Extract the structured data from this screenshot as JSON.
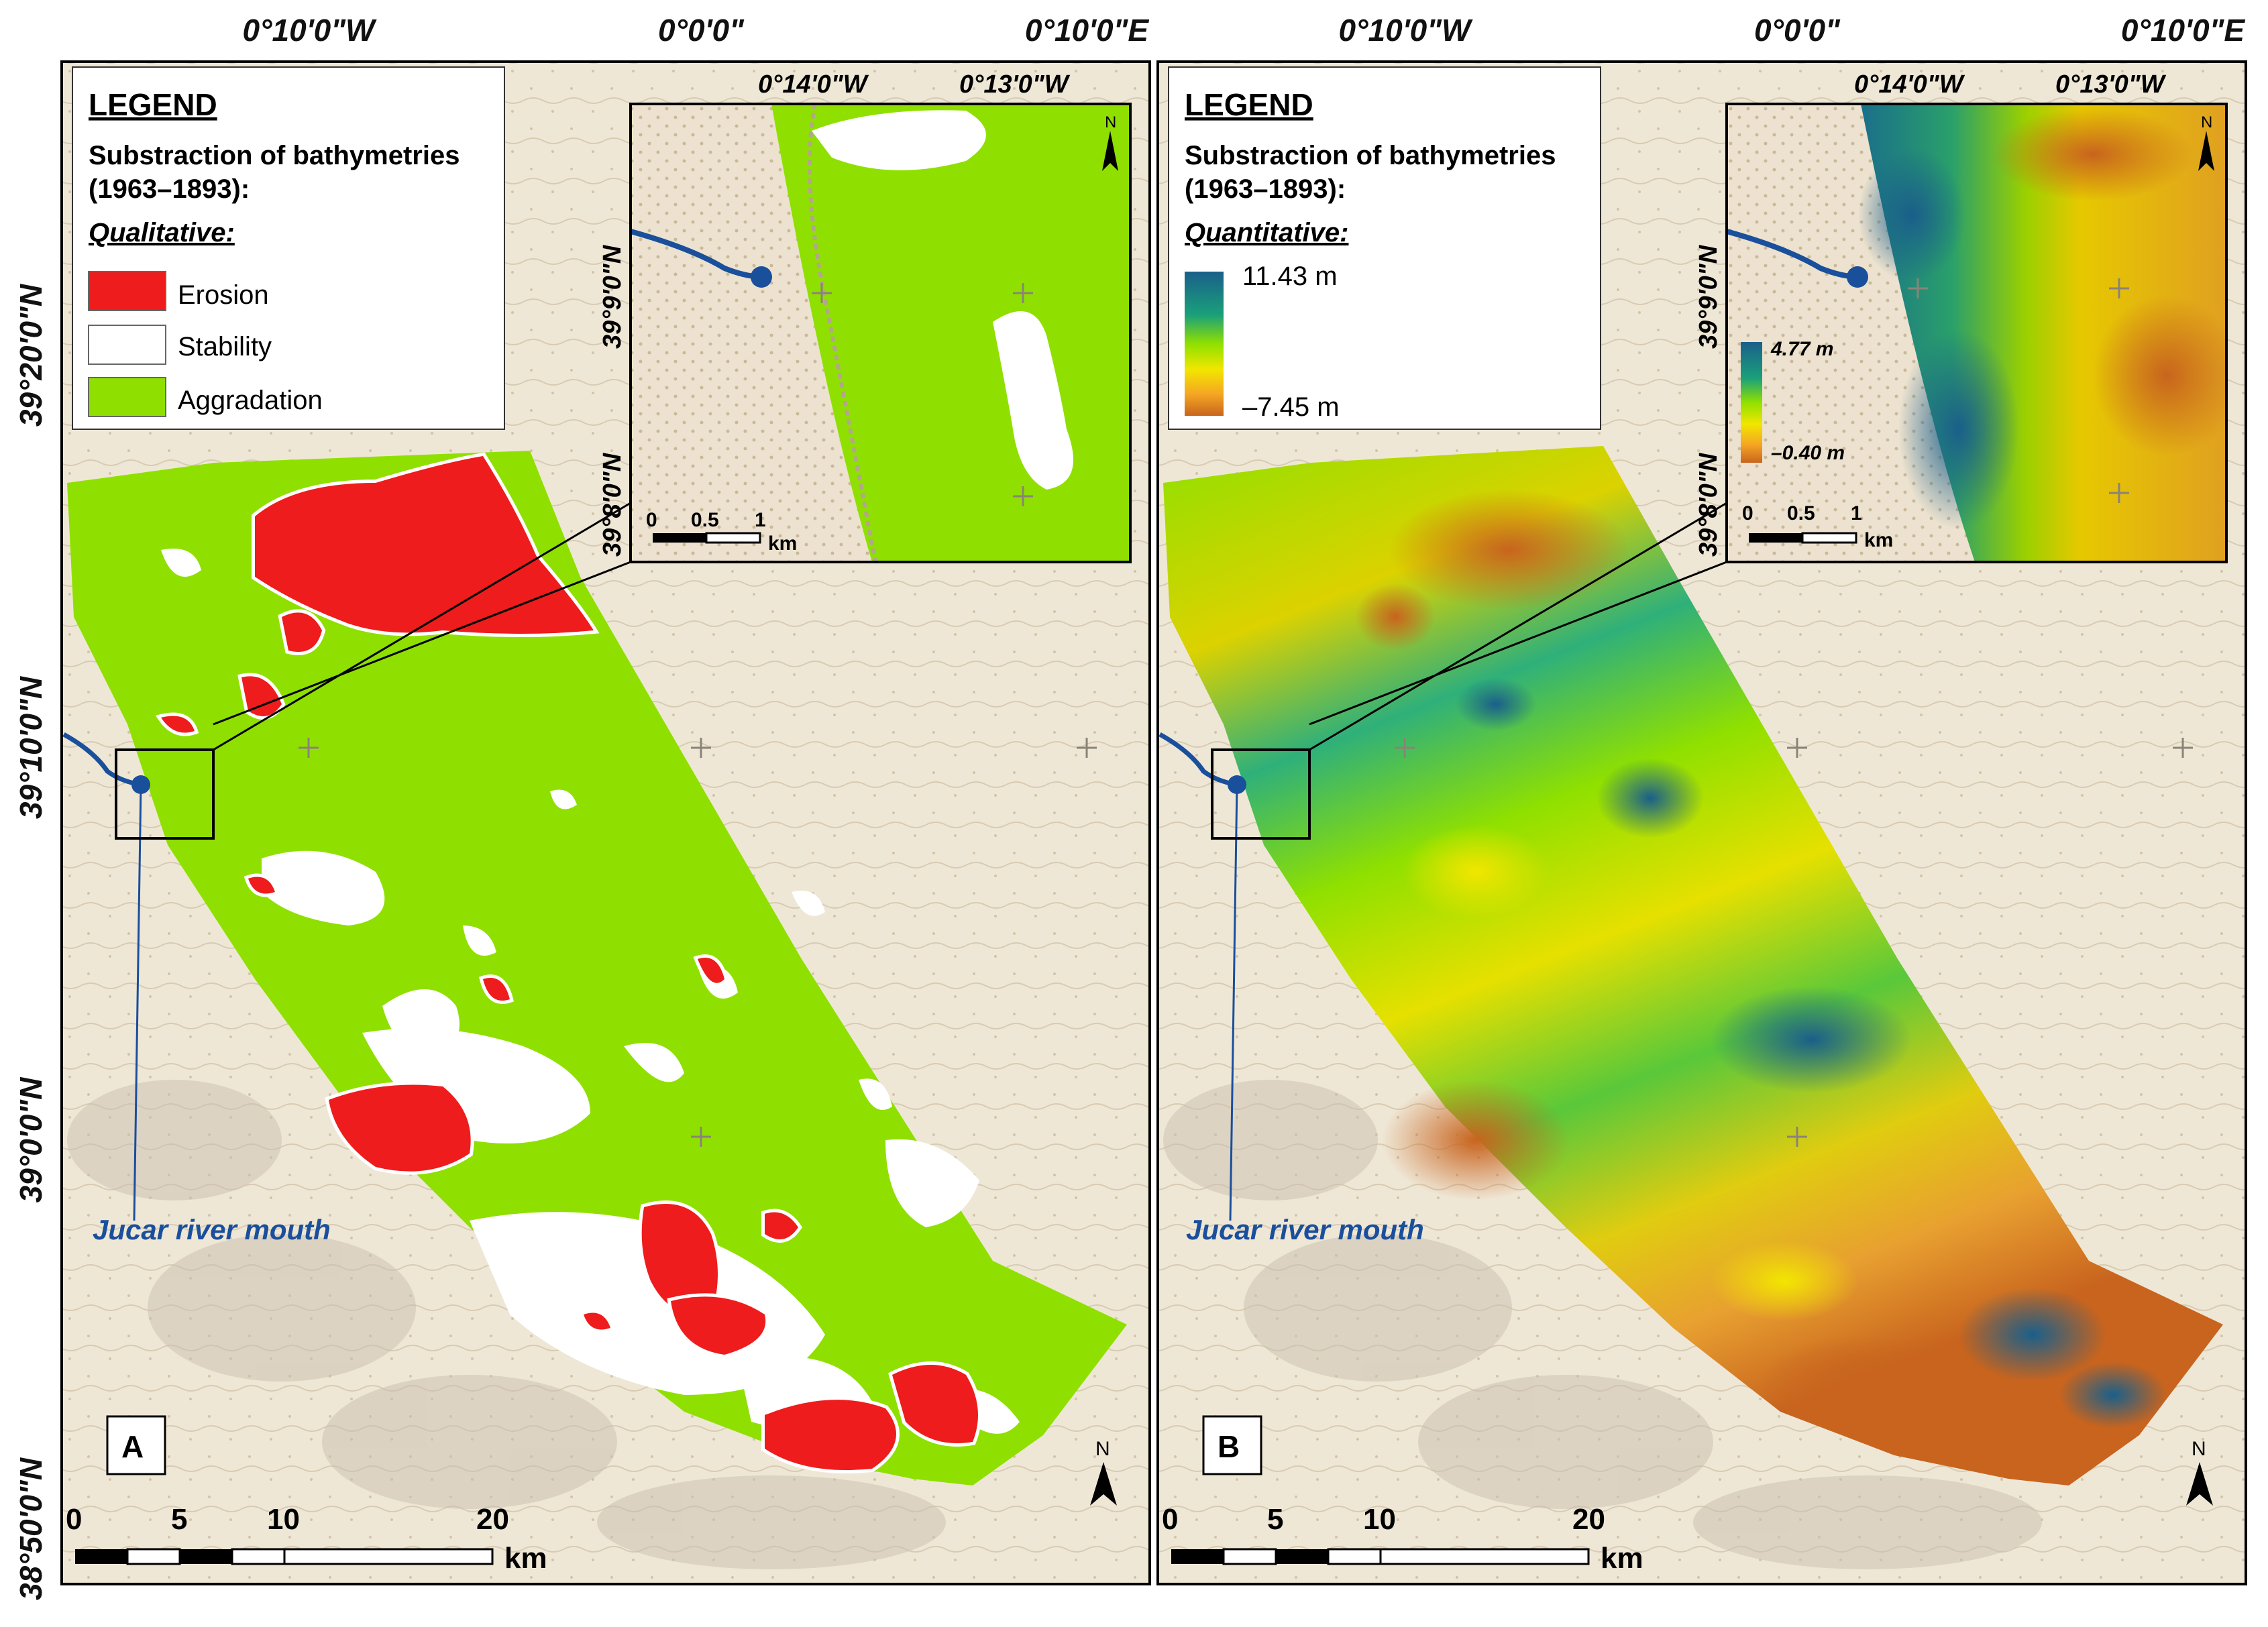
{
  "panels": [
    {
      "letter": "A",
      "legend": {
        "title": "LEGEND",
        "subtitle_line1": "Substraction of bathymetries",
        "subtitle_line2": "(1963–1893):",
        "mode": "Qualitative:",
        "items": [
          {
            "label": "Erosion",
            "color": "#ee1c1c"
          },
          {
            "label": "Stability",
            "color": "#ffffff"
          },
          {
            "label": "Aggradation",
            "color": "#8fe000"
          }
        ]
      },
      "inset": {
        "lon_labels": [
          "0°14'0\"W",
          "0°13'0\"W"
        ],
        "lat_labels": [
          "39°9'0\"N",
          "39°8'0\"N"
        ],
        "scale_ticks": [
          "0",
          "0.5",
          "1"
        ],
        "scale_unit": "km"
      },
      "river_label": "Jucar river mouth"
    },
    {
      "letter": "B",
      "legend": {
        "title": "LEGEND",
        "subtitle_line1": "Substraction of bathymetries",
        "subtitle_line2": "(1963–1893):",
        "mode": "Quantitative:",
        "ramp_max": "11.43 m",
        "ramp_min": "–7.45 m",
        "ramp_colors": [
          "#1a5f8a",
          "#1aa07a",
          "#8fe000",
          "#f2e600",
          "#f5a623",
          "#c8641e"
        ]
      },
      "inset": {
        "lon_labels": [
          "0°14'0\"W",
          "0°13'0\"W"
        ],
        "lat_labels": [
          "39°9'0\"N",
          "39°8'0\"N"
        ],
        "scale_ticks": [
          "0",
          "0.5",
          "1"
        ],
        "scale_unit": "km",
        "ramp_max": "4.77 m",
        "ramp_min": "–0.40 m"
      },
      "river_label": "Jucar river mouth"
    }
  ],
  "graticule": {
    "lon_labels": [
      "0°10'0\"W",
      "0°0'0\"",
      "0°10'0\"E"
    ],
    "lat_labels": [
      "39°20'0\"N",
      "39°10'0\"N",
      "39°0'0\"N",
      "38°50'0\"N"
    ]
  },
  "scale_bar": {
    "ticks": [
      "0",
      "5",
      "10",
      "20"
    ],
    "unit": "km"
  },
  "north_label": "N",
  "colors": {
    "erosion": "#ee1c1c",
    "aggradation": "#8fe000",
    "river": "#1a4f9c",
    "basemap": "#efe7d6"
  }
}
